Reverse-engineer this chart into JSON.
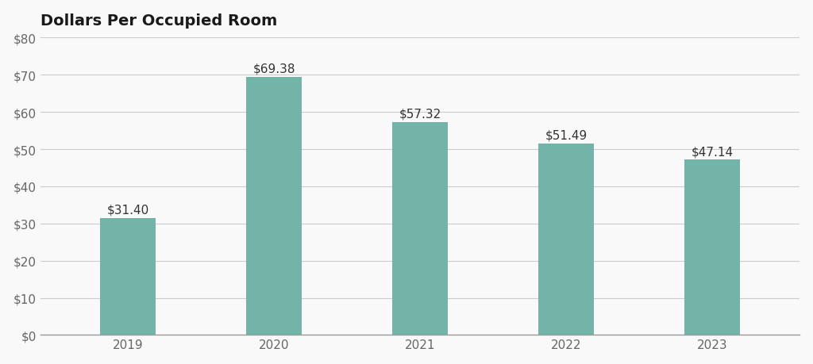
{
  "title": "Dollars Per Occupied Room",
  "categories": [
    "2019",
    "2020",
    "2021",
    "2022",
    "2023"
  ],
  "values": [
    31.4,
    69.38,
    57.32,
    51.49,
    47.14
  ],
  "labels": [
    "$31.40",
    "$69.38",
    "$57.32",
    "$51.49",
    "$47.14"
  ],
  "bar_color": "#72b5a8",
  "background_color": "#f9f9f9",
  "ylim": [
    0,
    80
  ],
  "yticks": [
    0,
    10,
    20,
    30,
    40,
    50,
    60,
    70,
    80
  ],
  "ytick_labels": [
    "$0",
    "$10",
    "$20",
    "$30",
    "$40",
    "$50",
    "$60",
    "$70",
    "$80"
  ],
  "title_fontsize": 14,
  "tick_fontsize": 11,
  "label_fontsize": 11,
  "bar_width": 0.38,
  "grid_color": "#cccccc",
  "tick_color": "#666666",
  "title_color": "#1a1a1a",
  "label_color": "#333333",
  "spine_bottom_color": "#999999"
}
